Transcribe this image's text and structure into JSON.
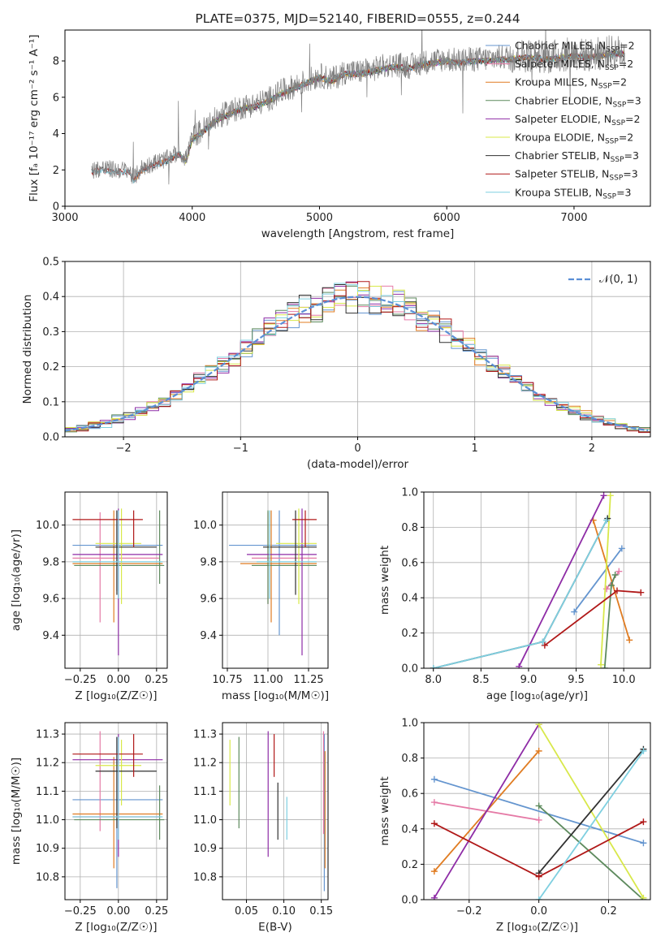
{
  "chart_data": [
    {
      "type": "line",
      "title": "PLATE=0375, MJD=52140, FIBERID=0555, z=0.244",
      "xlabel": "wavelength [Angstrom, rest frame]",
      "ylabel": "Flux [fₐ 10⁻¹⁷ erg cm⁻² s⁻¹ A⁻¹]",
      "xlim": [
        3000,
        7600
      ],
      "ylim": [
        0,
        9.7
      ],
      "xticks": [
        "3000",
        "4000",
        "5000",
        "6000",
        "7000"
      ],
      "yticks": [
        "0",
        "2",
        "4",
        "6",
        "8"
      ],
      "legend_position": "top-right",
      "data_series": {
        "name": "data",
        "color": "#808080",
        "x": [
          3210,
          3300,
          3400,
          3500,
          3540,
          3600,
          3700,
          3800,
          3900,
          3950,
          4000,
          4100,
          4200,
          4300,
          4400,
          4500,
          4600,
          4700,
          4800,
          4900,
          5000,
          5100,
          5200,
          5300,
          5400,
          5500,
          5600,
          5700,
          5800,
          5900,
          6000,
          6100,
          6200,
          6300,
          6400,
          6500,
          6600,
          6700,
          6800,
          6900,
          7000,
          7100,
          7200,
          7300,
          7400
        ],
        "y": [
          2.0,
          2.1,
          2.0,
          2.0,
          1.5,
          2.1,
          2.4,
          2.6,
          3.0,
          2.6,
          3.8,
          4.3,
          4.9,
          5.2,
          5.5,
          5.6,
          5.9,
          6.3,
          6.6,
          6.9,
          7.2,
          7.0,
          7.4,
          7.4,
          7.5,
          7.7,
          7.8,
          7.7,
          7.9,
          8.0,
          8.1,
          8.0,
          8.1,
          8.1,
          8.2,
          8.2,
          8.3,
          8.3,
          8.2,
          8.3,
          8.4,
          8.3,
          8.4,
          8.5,
          8.5
        ]
      },
      "series": [
        {
          "name": "Chabrier MILES, N_SSP=2",
          "label": "Chabrier MILES, N",
          "sub": "SSP",
          "suffix": "=2",
          "color": "#6495cf",
          "x0": 3540
        },
        {
          "name": "Salpeter MILES, N_SSP=2",
          "label": "Salpeter MILES, N",
          "sub": "SSP",
          "suffix": "=2",
          "color": "#e57aa6",
          "x0": 3540
        },
        {
          "name": "Kroupa MILES, N_SSP=2",
          "label": "Kroupa MILES, N",
          "sub": "SSP",
          "suffix": "=2",
          "color": "#e07c22",
          "x0": 3540
        },
        {
          "name": "Chabrier ELODIE, N_SSP=3",
          "label": "Chabrier ELODIE, N",
          "sub": "SSP",
          "suffix": "=3",
          "color": "#5d8a5d",
          "x0": 3900
        },
        {
          "name": "Salpeter ELODIE, N_SSP=2",
          "label": "Salpeter ELODIE, N",
          "sub": "SSP",
          "suffix": "=2",
          "color": "#8e2ca6",
          "x0": 3900
        },
        {
          "name": "Kroupa ELODIE, N_SSP=2",
          "label": "Kroupa ELODIE, N",
          "sub": "SSP",
          "suffix": "=2",
          "color": "#d8e84a",
          "x0": 3900
        },
        {
          "name": "Chabrier STELIB, N_SSP=3",
          "label": "Chabrier STELIB, N",
          "sub": "SSP",
          "suffix": "=3",
          "color": "#303030",
          "x0": 3210
        },
        {
          "name": "Salpeter STELIB, N_SSP=3",
          "label": "Salpeter STELIB, N",
          "sub": "SSP",
          "suffix": "=3",
          "color": "#b01818",
          "x0": 3210
        },
        {
          "name": "Kroupa STELIB, N_SSP=3",
          "label": "Kroupa STELIB, N",
          "sub": "SSP",
          "suffix": "=3",
          "color": "#7ecfe0",
          "x0": 3210
        }
      ]
    },
    {
      "type": "histogram",
      "xlabel": "(data-model)/error",
      "ylabel": "Normed distribution",
      "xlim": [
        -2.5,
        2.5
      ],
      "ylim": [
        0,
        0.5
      ],
      "xticks": [
        "−2",
        "−1",
        "0",
        "1",
        "2"
      ],
      "yticks": [
        "0.0",
        "0.1",
        "0.2",
        "0.3",
        "0.4",
        "0.5"
      ],
      "bin_width": 0.1,
      "reference": {
        "name": "N(0,1)",
        "label": "𝒩(0, 1)",
        "color": "#5b8fd6",
        "mean": 0,
        "sigma": 1
      },
      "series_colors": [
        "#6495cf",
        "#e57aa6",
        "#e07c22",
        "#5d8a5d",
        "#8e2ca6",
        "#d8e84a",
        "#303030",
        "#b01818",
        "#7ecfe0"
      ]
    },
    {
      "type": "scatter",
      "xlabel": "Z [log₁₀(Z/Z☉)]",
      "ylabel": "age  [log₁₀(age/yr)]",
      "xlim": [
        -0.35,
        0.32
      ],
      "ylim": [
        9.22,
        10.18
      ],
      "xticks": [
        "−0.25",
        "0.00",
        "0.25"
      ],
      "yticks": [
        "9.4",
        "9.6",
        "9.8",
        "10.0"
      ],
      "points": [
        {
          "x": -0.01,
          "y": 9.89,
          "xlo": -0.3,
          "xhi": 0.29,
          "ylo": 9.64,
          "yhi": 10.08,
          "color": "#6495cf"
        },
        {
          "x": -0.12,
          "y": 9.82,
          "xlo": -0.3,
          "xhi": 0.27,
          "ylo": 9.47,
          "yhi": 10.07,
          "color": "#e57aa6"
        },
        {
          "x": -0.03,
          "y": 9.79,
          "xlo": -0.3,
          "xhi": 0.29,
          "ylo": 9.47,
          "yhi": 10.08,
          "color": "#e07c22"
        },
        {
          "x": 0.27,
          "y": 9.78,
          "xlo": -0.29,
          "xhi": 0.3,
          "ylo": 9.68,
          "yhi": 10.08,
          "color": "#5d8a5d"
        },
        {
          "x": 0.0,
          "y": 9.84,
          "xlo": -0.3,
          "xhi": 0.29,
          "ylo": 9.29,
          "yhi": 10.09,
          "color": "#8e2ca6"
        },
        {
          "x": 0.02,
          "y": 9.9,
          "xlo": -0.15,
          "xhi": 0.15,
          "ylo": 9.57,
          "yhi": 10.09,
          "color": "#d8e84a"
        },
        {
          "x": -0.01,
          "y": 9.88,
          "xlo": -0.15,
          "xhi": 0.25,
          "ylo": 9.62,
          "yhi": 10.08,
          "color": "#303030"
        },
        {
          "x": 0.1,
          "y": 10.03,
          "xlo": -0.3,
          "xhi": 0.16,
          "ylo": 9.88,
          "yhi": 10.08,
          "color": "#b01818"
        },
        {
          "x": 0.0,
          "y": 9.8,
          "xlo": -0.3,
          "xhi": 0.29,
          "ylo": 9.6,
          "yhi": 10.08,
          "color": "#7ecfe0"
        }
      ]
    },
    {
      "type": "scatter",
      "xlabel": "mass [log₁₀(M/M☉)]",
      "ylabel": "",
      "xlim": [
        10.72,
        11.37
      ],
      "ylim": [
        9.22,
        10.18
      ],
      "xticks": [
        "10.75",
        "11.00",
        "11.25"
      ],
      "yticks": [
        "9.4",
        "9.6",
        "9.8",
        "10.0"
      ],
      "points": [
        {
          "x": 11.07,
          "y": 9.89,
          "xlo": 10.76,
          "xhi": 11.3,
          "ylo": 9.4,
          "yhi": 10.08,
          "color": "#6495cf"
        },
        {
          "x": 11.0,
          "y": 9.82,
          "xlo": 10.9,
          "xhi": 11.3,
          "ylo": 9.57,
          "yhi": 10.07,
          "color": "#e57aa6"
        },
        {
          "x": 11.02,
          "y": 9.79,
          "xlo": 10.83,
          "xhi": 11.3,
          "ylo": 9.47,
          "yhi": 10.08,
          "color": "#e07c22"
        },
        {
          "x": 11.0,
          "y": 9.78,
          "xlo": 10.9,
          "xhi": 11.3,
          "ylo": 9.57,
          "yhi": 10.08,
          "color": "#5d8a5d"
        },
        {
          "x": 11.21,
          "y": 9.84,
          "xlo": 10.87,
          "xhi": 11.3,
          "ylo": 9.29,
          "yhi": 10.09,
          "color": "#8e2ca6"
        },
        {
          "x": 11.19,
          "y": 9.9,
          "xlo": 11.05,
          "xhi": 11.3,
          "ylo": 9.57,
          "yhi": 10.09,
          "color": "#d8e84a"
        },
        {
          "x": 11.17,
          "y": 9.88,
          "xlo": 10.97,
          "xhi": 11.3,
          "ylo": 9.62,
          "yhi": 10.08,
          "color": "#303030"
        },
        {
          "x": 11.23,
          "y": 10.03,
          "xlo": 11.15,
          "xhi": 11.3,
          "ylo": 9.88,
          "yhi": 10.08,
          "color": "#b01818"
        },
        {
          "x": 11.01,
          "y": 9.8,
          "xlo": 10.93,
          "xhi": 11.3,
          "ylo": 9.6,
          "yhi": 10.08,
          "color": "#7ecfe0"
        }
      ]
    },
    {
      "type": "line",
      "xlabel": "age  [log₁₀(age/yr)]",
      "ylabel": "mass weight",
      "xlim": [
        7.9,
        10.28
      ],
      "ylim": [
        0,
        1.0
      ],
      "xticks": [
        "8.0",
        "8.5",
        "9.0",
        "9.5",
        "10.0"
      ],
      "yticks": [
        "0.0",
        "0.2",
        "0.4",
        "0.6",
        "0.8",
        "1.0"
      ],
      "series": [
        {
          "color": "#6495cf",
          "x": [
            9.48,
            9.98
          ],
          "y": [
            0.32,
            0.68
          ]
        },
        {
          "color": "#e57aa6",
          "x": [
            9.82,
            9.95
          ],
          "y": [
            0.45,
            0.55
          ]
        },
        {
          "color": "#e07c22",
          "x": [
            9.68,
            10.06
          ],
          "y": [
            0.84,
            0.16
          ]
        },
        {
          "color": "#5d8a5d",
          "x": [
            9.8,
            9.87,
            9.91
          ],
          "y": [
            0.0,
            0.47,
            0.53
          ]
        },
        {
          "color": "#8e2ca6",
          "x": [
            8.9,
            9.79
          ],
          "y": [
            0.01,
            0.98
          ]
        },
        {
          "color": "#d8e84a",
          "x": [
            9.76,
            9.86
          ],
          "y": [
            0.02,
            0.98
          ]
        },
        {
          "color": "#303030",
          "x": [
            8.0,
            9.15,
            9.83
          ],
          "y": [
            0.0,
            0.15,
            0.85
          ]
        },
        {
          "color": "#b01818",
          "x": [
            9.17,
            9.93,
            10.18
          ],
          "y": [
            0.13,
            0.44,
            0.43
          ]
        },
        {
          "color": "#7ecfe0",
          "x": [
            8.0,
            9.15,
            9.82
          ],
          "y": [
            0.0,
            0.15,
            0.84
          ]
        }
      ]
    },
    {
      "type": "scatter",
      "xlabel": "Z [log₁₀(Z/Z☉)]",
      "ylabel": "mass [log₁₀(M/M☉)]",
      "xlim": [
        -0.35,
        0.32
      ],
      "ylim": [
        10.72,
        11.34
      ],
      "xticks": [
        "−0.25",
        "0.00",
        "0.25"
      ],
      "yticks": [
        "10.8",
        "10.9",
        "11.0",
        "11.1",
        "11.2",
        "11.3"
      ],
      "points": [
        {
          "x": -0.01,
          "y": 11.07,
          "xlo": -0.3,
          "xhi": 0.29,
          "ylo": 10.76,
          "yhi": 11.29,
          "color": "#6495cf"
        },
        {
          "x": -0.12,
          "y": 11.01,
          "xlo": -0.3,
          "xhi": 0.27,
          "ylo": 10.96,
          "yhi": 11.31,
          "color": "#e57aa6"
        },
        {
          "x": -0.03,
          "y": 11.02,
          "xlo": -0.3,
          "xhi": 0.29,
          "ylo": 10.83,
          "yhi": 11.22,
          "color": "#e07c22"
        },
        {
          "x": 0.27,
          "y": 11.0,
          "xlo": -0.29,
          "xhi": 0.3,
          "ylo": 10.93,
          "yhi": 11.12,
          "color": "#5d8a5d"
        },
        {
          "x": 0.0,
          "y": 11.21,
          "xlo": -0.3,
          "xhi": 0.29,
          "ylo": 10.87,
          "yhi": 11.3,
          "color": "#8e2ca6"
        },
        {
          "x": 0.02,
          "y": 11.19,
          "xlo": -0.15,
          "xhi": 0.15,
          "ylo": 11.05,
          "yhi": 11.28,
          "color": "#d8e84a"
        },
        {
          "x": -0.01,
          "y": 11.17,
          "xlo": -0.15,
          "xhi": 0.25,
          "ylo": 10.97,
          "yhi": 11.29,
          "color": "#303030"
        },
        {
          "x": 0.1,
          "y": 11.23,
          "xlo": -0.3,
          "xhi": 0.16,
          "ylo": 11.15,
          "yhi": 11.3,
          "color": "#b01818"
        },
        {
          "x": 0.0,
          "y": 11.01,
          "xlo": -0.3,
          "xhi": 0.29,
          "ylo": 10.93,
          "yhi": 11.29,
          "color": "#7ecfe0"
        }
      ]
    },
    {
      "type": "scatter",
      "xlabel": "E(B-V)",
      "ylabel": "",
      "xlim": [
        0.018,
        0.159
      ],
      "ylim": [
        10.72,
        11.34
      ],
      "xticks": [
        "0.05",
        "0.10",
        "0.15"
      ],
      "yticks": [
        "10.8",
        "10.9",
        "11.0",
        "11.1",
        "11.2",
        "11.3"
      ],
      "points": [
        {
          "x": 0.154,
          "ylo": 10.75,
          "yhi": 11.3,
          "color": "#6495cf"
        },
        {
          "x": 0.153,
          "ylo": 10.95,
          "yhi": 11.31,
          "color": "#e57aa6"
        },
        {
          "x": 0.155,
          "ylo": 10.83,
          "yhi": 11.24,
          "color": "#e07c22"
        },
        {
          "x": 0.04,
          "ylo": 10.97,
          "yhi": 11.29,
          "color": "#5d8a5d"
        },
        {
          "x": 0.079,
          "ylo": 10.87,
          "yhi": 11.31,
          "color": "#8e2ca6"
        },
        {
          "x": 0.028,
          "ylo": 11.05,
          "yhi": 11.28,
          "color": "#d8e84a"
        },
        {
          "x": 0.092,
          "ylo": 10.93,
          "yhi": 11.13,
          "color": "#303030"
        },
        {
          "x": 0.087,
          "ylo": 11.15,
          "yhi": 11.3,
          "color": "#b01818"
        },
        {
          "x": 0.104,
          "ylo": 10.93,
          "yhi": 11.08,
          "color": "#7ecfe0"
        }
      ]
    },
    {
      "type": "line",
      "xlabel": "Z [log₁₀(Z/Z☉)]",
      "ylabel": "mass weight",
      "xlim": [
        -0.33,
        0.32
      ],
      "ylim": [
        0,
        1.0
      ],
      "xticks": [
        "−0.2",
        "0.0",
        "0.2"
      ],
      "yticks": [
        "0.0",
        "0.2",
        "0.4",
        "0.6",
        "0.8",
        "1.0"
      ],
      "series": [
        {
          "color": "#6495cf",
          "x": [
            -0.3,
            0.3
          ],
          "y": [
            0.68,
            0.32
          ]
        },
        {
          "color": "#e57aa6",
          "x": [
            -0.3,
            0.0
          ],
          "y": [
            0.55,
            0.45
          ]
        },
        {
          "color": "#e07c22",
          "x": [
            -0.3,
            0.0
          ],
          "y": [
            0.16,
            0.84
          ]
        },
        {
          "color": "#5d8a5d",
          "x": [
            0.0,
            0.3
          ],
          "y": [
            0.53,
            0.0
          ]
        },
        {
          "color": "#8e2ca6",
          "x": [
            -0.3,
            0.0
          ],
          "y": [
            0.01,
            0.99
          ]
        },
        {
          "color": "#d8e84a",
          "x": [
            0.0,
            0.3
          ],
          "y": [
            0.99,
            0.01
          ]
        },
        {
          "color": "#303030",
          "x": [
            0.0,
            0.3
          ],
          "y": [
            0.15,
            0.85
          ]
        },
        {
          "color": "#b01818",
          "x": [
            -0.3,
            0.0,
            0.3
          ],
          "y": [
            0.43,
            0.13,
            0.44
          ]
        },
        {
          "color": "#7ecfe0",
          "x": [
            0.0,
            0.3
          ],
          "y": [
            0.0,
            0.84
          ]
        }
      ]
    }
  ]
}
